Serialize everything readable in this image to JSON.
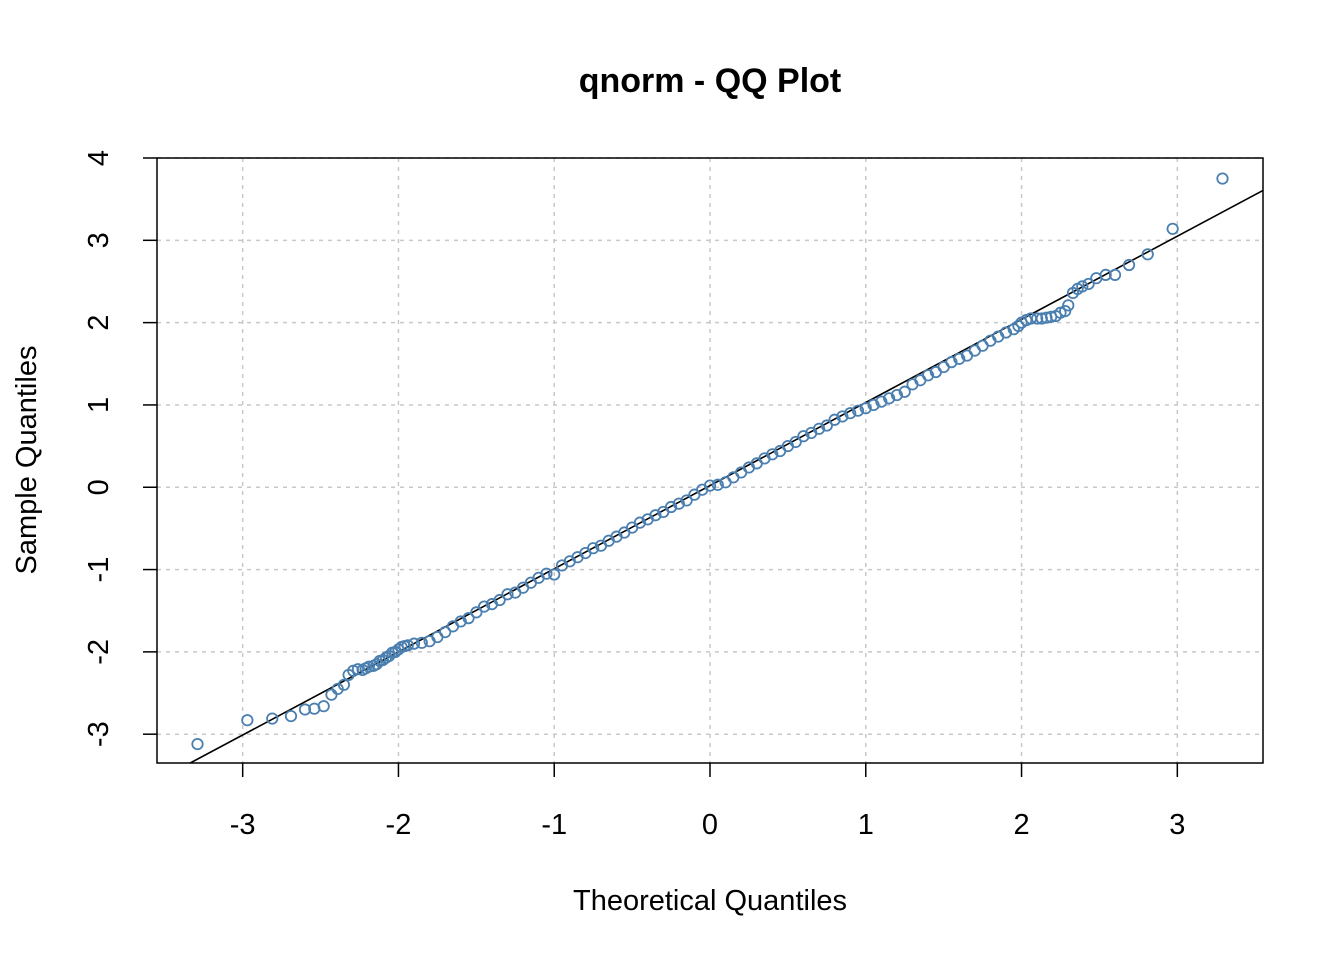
{
  "chart_data": {
    "type": "scatter",
    "title": "qnorm - QQ Plot",
    "xlabel": "Theoretical Quantiles",
    "ylabel": "Sample Quantiles",
    "xlim": [
      -3.55,
      3.55
    ],
    "ylim": [
      -3.35,
      4.0
    ],
    "xticks": [
      -3,
      -2,
      -1,
      0,
      1,
      2,
      3
    ],
    "yticks": [
      -3,
      -2,
      -1,
      0,
      1,
      2,
      3,
      4
    ],
    "xtick_labels": [
      "-3",
      "-2",
      "-1",
      "0",
      "1",
      "2",
      "3"
    ],
    "ytick_labels": [
      "-3",
      "-2",
      "-1",
      "0",
      "1",
      "2",
      "3",
      "4"
    ],
    "grid": true,
    "point_color": "#4a7fb0",
    "line_color": "#000000",
    "reference_line": {
      "intercept": 0.02,
      "slope": 1.01
    },
    "points": [
      [
        -3.29,
        -3.12
      ],
      [
        -2.97,
        -2.83
      ],
      [
        -2.81,
        -2.81
      ],
      [
        -2.69,
        -2.78
      ],
      [
        -2.6,
        -2.7
      ],
      [
        -2.54,
        -2.69
      ],
      [
        -2.48,
        -2.66
      ],
      [
        -2.43,
        -2.52
      ],
      [
        -2.39,
        -2.45
      ],
      [
        -2.35,
        -2.4
      ],
      [
        -2.32,
        -2.28
      ],
      [
        -2.29,
        -2.23
      ],
      [
        -2.26,
        -2.21
      ],
      [
        -2.23,
        -2.22
      ],
      [
        -2.21,
        -2.2
      ],
      [
        -2.19,
        -2.18
      ],
      [
        -2.16,
        -2.17
      ],
      [
        -2.14,
        -2.15
      ],
      [
        -2.12,
        -2.11
      ],
      [
        -2.1,
        -2.1
      ],
      [
        -2.08,
        -2.07
      ],
      [
        -2.06,
        -2.05
      ],
      [
        -2.04,
        -2.01
      ],
      [
        -2.02,
        -2.0
      ],
      [
        -2.0,
        -1.97
      ],
      [
        -1.98,
        -1.94
      ],
      [
        -1.96,
        -1.93
      ],
      [
        -1.94,
        -1.92
      ],
      [
        -1.9,
        -1.9
      ],
      [
        -1.85,
        -1.89
      ],
      [
        -1.8,
        -1.87
      ],
      [
        -1.75,
        -1.82
      ],
      [
        -1.7,
        -1.76
      ],
      [
        -1.65,
        -1.69
      ],
      [
        -1.6,
        -1.63
      ],
      [
        -1.55,
        -1.59
      ],
      [
        -1.5,
        -1.52
      ],
      [
        -1.45,
        -1.45
      ],
      [
        -1.4,
        -1.42
      ],
      [
        -1.35,
        -1.37
      ],
      [
        -1.3,
        -1.3
      ],
      [
        -1.25,
        -1.28
      ],
      [
        -1.2,
        -1.22
      ],
      [
        -1.15,
        -1.16
      ],
      [
        -1.1,
        -1.1
      ],
      [
        -1.05,
        -1.05
      ],
      [
        -1.0,
        -1.06
      ],
      [
        -0.95,
        -0.95
      ],
      [
        -0.9,
        -0.9
      ],
      [
        -0.85,
        -0.85
      ],
      [
        -0.8,
        -0.8
      ],
      [
        -0.75,
        -0.74
      ],
      [
        -0.7,
        -0.71
      ],
      [
        -0.65,
        -0.65
      ],
      [
        -0.6,
        -0.6
      ],
      [
        -0.55,
        -0.55
      ],
      [
        -0.5,
        -0.49
      ],
      [
        -0.45,
        -0.43
      ],
      [
        -0.4,
        -0.39
      ],
      [
        -0.35,
        -0.34
      ],
      [
        -0.3,
        -0.3
      ],
      [
        -0.25,
        -0.24
      ],
      [
        -0.2,
        -0.2
      ],
      [
        -0.15,
        -0.16
      ],
      [
        -0.1,
        -0.09
      ],
      [
        -0.05,
        -0.03
      ],
      [
        0.0,
        0.02
      ],
      [
        0.05,
        0.03
      ],
      [
        0.1,
        0.06
      ],
      [
        0.15,
        0.12
      ],
      [
        0.2,
        0.18
      ],
      [
        0.25,
        0.24
      ],
      [
        0.3,
        0.29
      ],
      [
        0.35,
        0.35
      ],
      [
        0.4,
        0.4
      ],
      [
        0.45,
        0.44
      ],
      [
        0.5,
        0.5
      ],
      [
        0.55,
        0.55
      ],
      [
        0.6,
        0.62
      ],
      [
        0.65,
        0.66
      ],
      [
        0.7,
        0.71
      ],
      [
        0.75,
        0.75
      ],
      [
        0.8,
        0.82
      ],
      [
        0.85,
        0.86
      ],
      [
        0.9,
        0.9
      ],
      [
        0.95,
        0.93
      ],
      [
        1.0,
        0.96
      ],
      [
        1.05,
        1.0
      ],
      [
        1.1,
        1.04
      ],
      [
        1.15,
        1.08
      ],
      [
        1.2,
        1.12
      ],
      [
        1.25,
        1.16
      ],
      [
        1.3,
        1.25
      ],
      [
        1.35,
        1.3
      ],
      [
        1.4,
        1.36
      ],
      [
        1.45,
        1.4
      ],
      [
        1.5,
        1.46
      ],
      [
        1.55,
        1.52
      ],
      [
        1.6,
        1.56
      ],
      [
        1.65,
        1.6
      ],
      [
        1.7,
        1.66
      ],
      [
        1.75,
        1.72
      ],
      [
        1.8,
        1.78
      ],
      [
        1.85,
        1.83
      ],
      [
        1.9,
        1.88
      ],
      [
        1.95,
        1.92
      ],
      [
        1.98,
        1.96
      ],
      [
        2.0,
        2.0
      ],
      [
        2.03,
        2.03
      ],
      [
        2.06,
        2.05
      ],
      [
        2.1,
        2.05
      ],
      [
        2.13,
        2.05
      ],
      [
        2.16,
        2.06
      ],
      [
        2.19,
        2.07
      ],
      [
        2.22,
        2.08
      ],
      [
        2.25,
        2.12
      ],
      [
        2.28,
        2.14
      ],
      [
        2.3,
        2.21
      ],
      [
        2.33,
        2.36
      ],
      [
        2.36,
        2.41
      ],
      [
        2.39,
        2.44
      ],
      [
        2.43,
        2.47
      ],
      [
        2.48,
        2.54
      ],
      [
        2.54,
        2.58
      ],
      [
        2.6,
        2.58
      ],
      [
        2.69,
        2.7
      ],
      [
        2.81,
        2.83
      ],
      [
        2.97,
        3.14
      ],
      [
        3.29,
        3.75
      ]
    ]
  }
}
